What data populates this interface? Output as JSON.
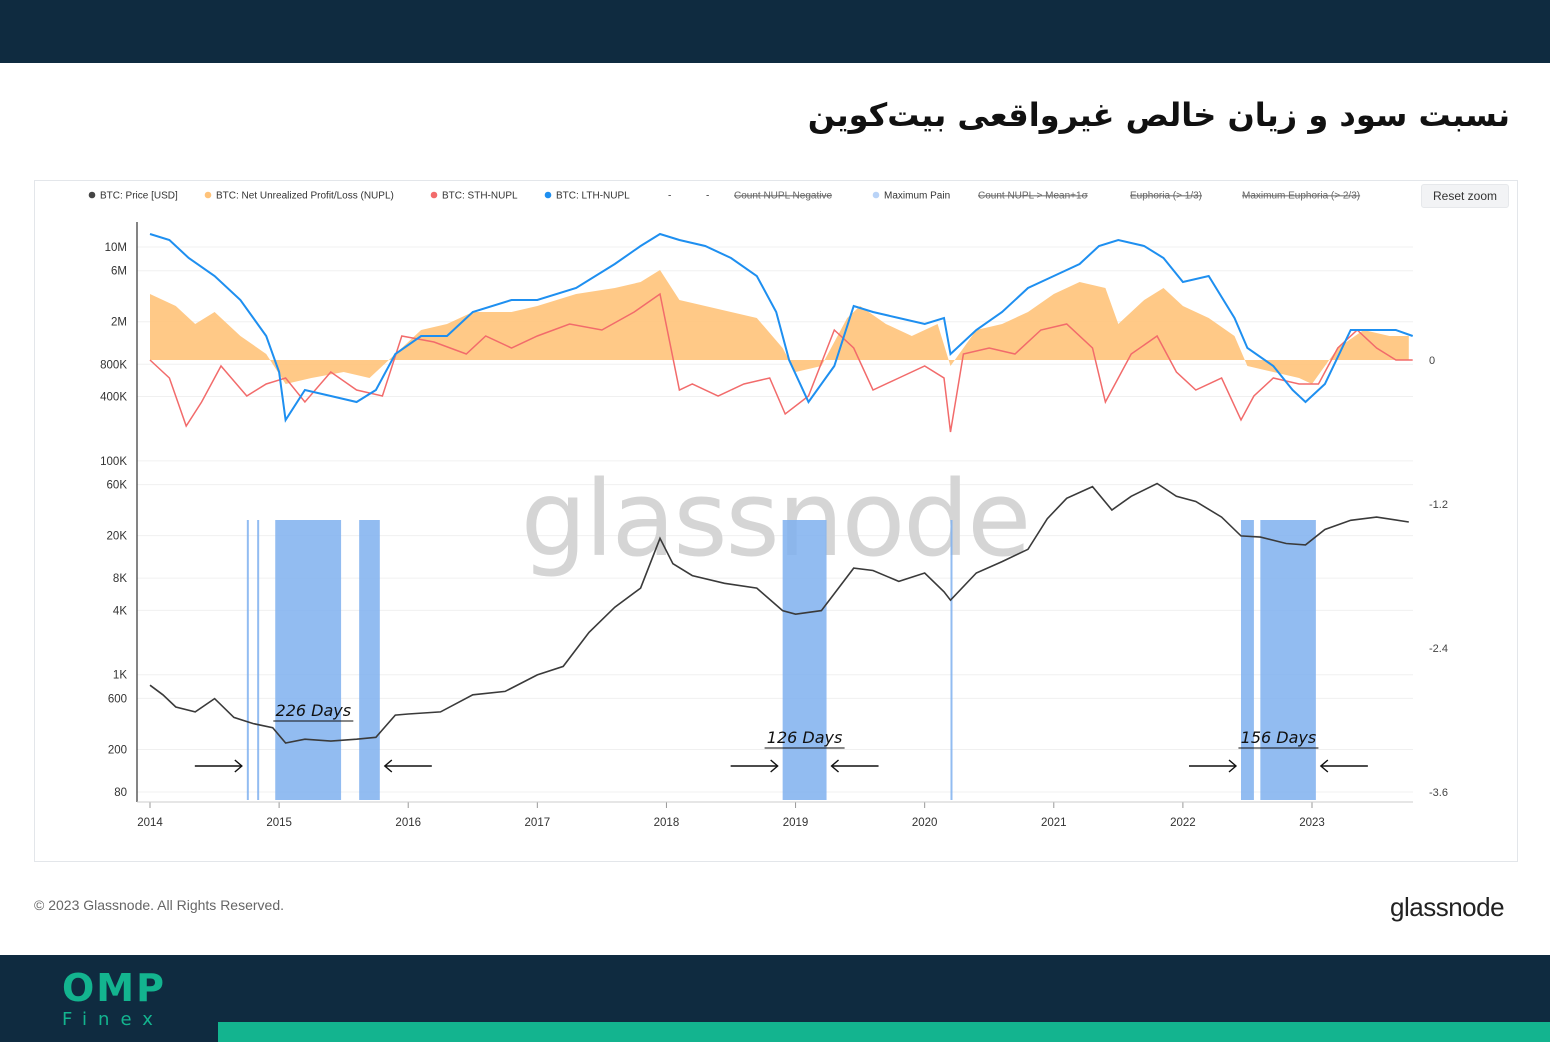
{
  "page": {
    "title": "نسبت سود و زیان خالص غیرواقعی بیت‌کوین",
    "brand": "OMP",
    "brand_sub": "Finex",
    "copyright": "© 2023 Glassnode. All Rights Reserved.",
    "footer_logo": "glassnode",
    "watermark": "glassnode",
    "reset_zoom": "Reset zoom"
  },
  "colors": {
    "header_bar": "#0f2b40",
    "accent_green": "#13b48f",
    "price": "#3a3a3a",
    "nupl": "#ffc37a",
    "sth_nupl": "#f26b6b",
    "lth_nupl": "#1e8ff0",
    "max_pain": "#7fb0ef"
  },
  "legend": [
    {
      "name": "BTC: Price [USD]",
      "color": "#444444",
      "icon": "dot",
      "disabled": false
    },
    {
      "name": "BTC: Net Unrealized Profit/Loss (NUPL)",
      "color": "#ffc37a",
      "icon": "dot",
      "disabled": false
    },
    {
      "name": "BTC: STH-NUPL",
      "color": "#f26b6b",
      "icon": "dot",
      "disabled": false
    },
    {
      "name": "BTC: LTH-NUPL",
      "color": "#1e8ff0",
      "icon": "dot",
      "disabled": false
    },
    {
      "name": "-",
      "color": "#999999",
      "icon": "none",
      "disabled": false
    },
    {
      "name": "-",
      "color": "#999999",
      "icon": "none",
      "disabled": false
    },
    {
      "name": "Count NUPL Negative",
      "color": "#aaaaaa",
      "icon": "line",
      "disabled": true
    },
    {
      "name": "Maximum Pain",
      "color": "#b9d3f7",
      "icon": "dot",
      "disabled": false
    },
    {
      "name": "Count NUPL > Mean+1σ",
      "color": "#aaaaaa",
      "icon": "line",
      "disabled": true
    },
    {
      "name": "Euphoria (> 1/3)",
      "color": "#f0b05a",
      "icon": "line",
      "disabled": true
    },
    {
      "name": "Maximum Euphoria (> 2/3)",
      "color": "#e86a6a",
      "icon": "line",
      "disabled": true
    }
  ],
  "chart_data": {
    "type": "line",
    "x_ticks": [
      "2014",
      "2015",
      "2016",
      "2017",
      "2018",
      "2019",
      "2020",
      "2021",
      "2022",
      "2023"
    ],
    "y_left_ticks": [
      "10M",
      "6M",
      "2M",
      "800K",
      "400K",
      "100K",
      "60K",
      "20K",
      "8K",
      "4K",
      "1K",
      "600",
      "200",
      "80"
    ],
    "y_right_ticks": [
      "0",
      "-1.2",
      "-2.4",
      "-3.6"
    ],
    "x_range": [
      2013.95,
      2023.8
    ],
    "y_right_range": [
      -3.6,
      1.6
    ],
    "series": [
      {
        "name": "BTC: Price [USD]",
        "x": [
          2014.0,
          2014.1,
          2014.2,
          2014.35,
          2014.5,
          2014.65,
          2014.8,
          2014.95,
          2015.05,
          2015.2,
          2015.4,
          2015.6,
          2015.75,
          2015.9,
          2016.0,
          2016.25,
          2016.5,
          2016.75,
          2017.0,
          2017.2,
          2017.4,
          2017.6,
          2017.8,
          2017.95,
          2018.05,
          2018.2,
          2018.45,
          2018.7,
          2018.9,
          2019.0,
          2019.2,
          2019.45,
          2019.6,
          2019.8,
          2020.0,
          2020.15,
          2020.2,
          2020.4,
          2020.6,
          2020.8,
          2020.95,
          2021.1,
          2021.3,
          2021.45,
          2021.6,
          2021.8,
          2021.95,
          2022.1,
          2022.3,
          2022.45,
          2022.6,
          2022.8,
          2022.95,
          2023.1,
          2023.3,
          2023.5,
          2023.75
        ],
        "y": [
          800,
          650,
          500,
          450,
          600,
          400,
          350,
          320,
          230,
          250,
          240,
          250,
          260,
          420,
          430,
          450,
          650,
          700,
          1000,
          1200,
          2500,
          4300,
          6500,
          19000,
          11000,
          8500,
          7200,
          6500,
          4000,
          3700,
          4000,
          10000,
          9500,
          7500,
          9000,
          6000,
          5000,
          9000,
          11500,
          15000,
          29000,
          45000,
          58000,
          35000,
          47000,
          62000,
          47000,
          42000,
          30000,
          20000,
          19500,
          17000,
          16500,
          23000,
          28000,
          30000,
          27000
        ]
      },
      {
        "name": "BTC: Net Unrealized Profit/Loss (NUPL)",
        "x": [
          2014.0,
          2014.2,
          2014.35,
          2014.5,
          2014.7,
          2014.9,
          2015.05,
          2015.25,
          2015.5,
          2015.7,
          2015.9,
          2016.1,
          2016.3,
          2016.5,
          2016.8,
          2017.0,
          2017.3,
          2017.6,
          2017.8,
          2017.95,
          2018.1,
          2018.3,
          2018.5,
          2018.7,
          2018.9,
          2019.0,
          2019.2,
          2019.4,
          2019.5,
          2019.7,
          2019.9,
          2020.1,
          2020.2,
          2020.4,
          2020.6,
          2020.8,
          2021.0,
          2021.2,
          2021.4,
          2021.5,
          2021.7,
          2021.85,
          2022.0,
          2022.2,
          2022.4,
          2022.5,
          2022.7,
          2022.9,
          2023.0,
          2023.2,
          2023.4,
          2023.6,
          2023.75
        ],
        "y": [
          0.55,
          0.45,
          0.3,
          0.4,
          0.2,
          0.05,
          -0.2,
          -0.15,
          -0.1,
          -0.15,
          0.05,
          0.25,
          0.3,
          0.4,
          0.4,
          0.45,
          0.55,
          0.6,
          0.65,
          0.75,
          0.5,
          0.45,
          0.4,
          0.35,
          0.1,
          -0.1,
          -0.05,
          0.35,
          0.45,
          0.3,
          0.2,
          0.3,
          -0.05,
          0.25,
          0.3,
          0.4,
          0.55,
          0.65,
          0.6,
          0.3,
          0.5,
          0.6,
          0.45,
          0.35,
          0.2,
          -0.05,
          -0.1,
          -0.15,
          -0.2,
          0.1,
          0.25,
          0.2,
          0.2
        ]
      },
      {
        "name": "BTC: STH-NUPL",
        "x": [
          2014.0,
          2014.15,
          2014.28,
          2014.4,
          2014.55,
          2014.75,
          2014.9,
          2015.05,
          2015.2,
          2015.4,
          2015.6,
          2015.8,
          2015.95,
          2016.2,
          2016.45,
          2016.6,
          2016.8,
          2017.0,
          2017.25,
          2017.5,
          2017.75,
          2017.95,
          2018.1,
          2018.2,
          2018.4,
          2018.6,
          2018.8,
          2018.92,
          2019.1,
          2019.3,
          2019.45,
          2019.6,
          2019.8,
          2020.0,
          2020.15,
          2020.2,
          2020.3,
          2020.5,
          2020.7,
          2020.9,
          2021.1,
          2021.3,
          2021.4,
          2021.6,
          2021.8,
          2021.95,
          2022.1,
          2022.3,
          2022.45,
          2022.55,
          2022.7,
          2022.9,
          2023.05,
          2023.2,
          2023.35,
          2023.5,
          2023.65,
          2023.78
        ],
        "y": [
          0.0,
          -0.15,
          -0.55,
          -0.35,
          -0.05,
          -0.3,
          -0.2,
          -0.15,
          -0.35,
          -0.1,
          -0.25,
          -0.3,
          0.2,
          0.15,
          0.05,
          0.2,
          0.1,
          0.2,
          0.3,
          0.25,
          0.4,
          0.55,
          -0.25,
          -0.2,
          -0.3,
          -0.2,
          -0.15,
          -0.45,
          -0.3,
          0.25,
          0.1,
          -0.25,
          -0.15,
          -0.05,
          -0.15,
          -0.6,
          0.05,
          0.1,
          0.05,
          0.25,
          0.3,
          0.1,
          -0.35,
          0.05,
          0.2,
          -0.1,
          -0.25,
          -0.15,
          -0.5,
          -0.3,
          -0.15,
          -0.2,
          -0.2,
          0.1,
          0.25,
          0.1,
          0.0,
          0.0
        ]
      },
      {
        "name": "BTC: LTH-NUPL",
        "x": [
          2014.0,
          2014.15,
          2014.3,
          2014.5,
          2014.7,
          2014.9,
          2015.0,
          2015.05,
          2015.2,
          2015.4,
          2015.6,
          2015.75,
          2015.9,
          2016.1,
          2016.3,
          2016.5,
          2016.8,
          2017.0,
          2017.3,
          2017.6,
          2017.8,
          2017.95,
          2018.1,
          2018.3,
          2018.5,
          2018.7,
          2018.85,
          2018.95,
          2019.1,
          2019.3,
          2019.45,
          2019.6,
          2019.8,
          2020.0,
          2020.15,
          2020.2,
          2020.4,
          2020.6,
          2020.8,
          2021.0,
          2021.2,
          2021.35,
          2021.5,
          2021.7,
          2021.85,
          2022.0,
          2022.2,
          2022.4,
          2022.5,
          2022.7,
          2022.85,
          2022.95,
          2023.1,
          2023.3,
          2023.5,
          2023.65,
          2023.78
        ],
        "y": [
          1.05,
          1.0,
          0.85,
          0.7,
          0.5,
          0.2,
          -0.1,
          -0.5,
          -0.25,
          -0.3,
          -0.35,
          -0.25,
          0.05,
          0.2,
          0.2,
          0.4,
          0.5,
          0.5,
          0.6,
          0.8,
          0.95,
          1.05,
          1.0,
          0.95,
          0.85,
          0.7,
          0.4,
          0.0,
          -0.35,
          -0.05,
          0.45,
          0.4,
          0.35,
          0.3,
          0.35,
          0.05,
          0.25,
          0.4,
          0.6,
          0.7,
          0.8,
          0.95,
          1.0,
          0.95,
          0.85,
          0.65,
          0.7,
          0.35,
          0.1,
          -0.05,
          -0.25,
          -0.35,
          -0.2,
          0.25,
          0.25,
          0.25,
          0.2
        ]
      }
    ],
    "max_pain_periods": [
      {
        "start": 2014.75,
        "end": 2014.76
      },
      {
        "start": 2014.83,
        "end": 2014.84
      },
      {
        "start": 2014.97,
        "end": 2015.48
      },
      {
        "start": 2015.62,
        "end": 2015.78
      },
      {
        "start": 2018.9,
        "end": 2019.24
      },
      {
        "start": 2020.2,
        "end": 2020.21
      },
      {
        "start": 2022.45,
        "end": 2022.55
      },
      {
        "start": 2022.6,
        "end": 2023.03
      }
    ],
    "annotations": [
      {
        "label": "226 Days",
        "start": 2014.75,
        "end": 2015.78
      },
      {
        "label": "126 Days",
        "start": 2018.9,
        "end": 2019.24
      },
      {
        "label": "156 Days",
        "start": 2022.45,
        "end": 2023.03
      }
    ]
  }
}
